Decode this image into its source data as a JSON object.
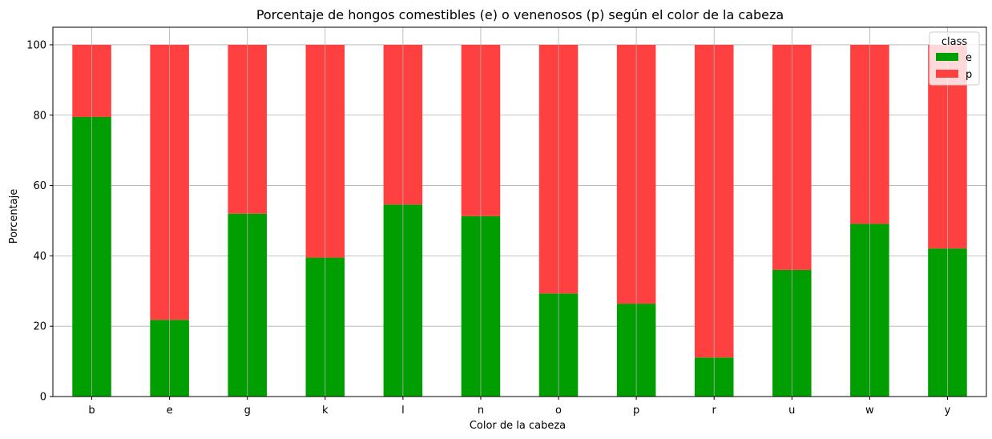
{
  "chart_data": {
    "type": "bar",
    "stacked": true,
    "title": "Porcentaje de hongos comestibles (e) o venenosos (p) según el color de la cabeza",
    "xlabel": "Color de la cabeza",
    "ylabel": "Porcentaje",
    "ylim": [
      0,
      105
    ],
    "yticks": [
      0,
      20,
      40,
      60,
      80,
      100
    ],
    "grid": true,
    "legend": {
      "title": "class",
      "placement": "top-right"
    },
    "categories": [
      "b",
      "e",
      "g",
      "k",
      "l",
      "n",
      "o",
      "p",
      "r",
      "u",
      "w",
      "y"
    ],
    "series": [
      {
        "name": "e",
        "color": "#009e00",
        "values": [
          79.5,
          21.8,
          52.0,
          39.5,
          54.6,
          51.3,
          29.3,
          26.4,
          11.1,
          36.0,
          49.1,
          42.1
        ]
      },
      {
        "name": "p",
        "color": "#ff4040",
        "values": [
          20.5,
          78.2,
          48.0,
          60.5,
          45.4,
          48.7,
          70.7,
          73.6,
          88.9,
          64.0,
          50.9,
          57.9
        ]
      }
    ]
  }
}
